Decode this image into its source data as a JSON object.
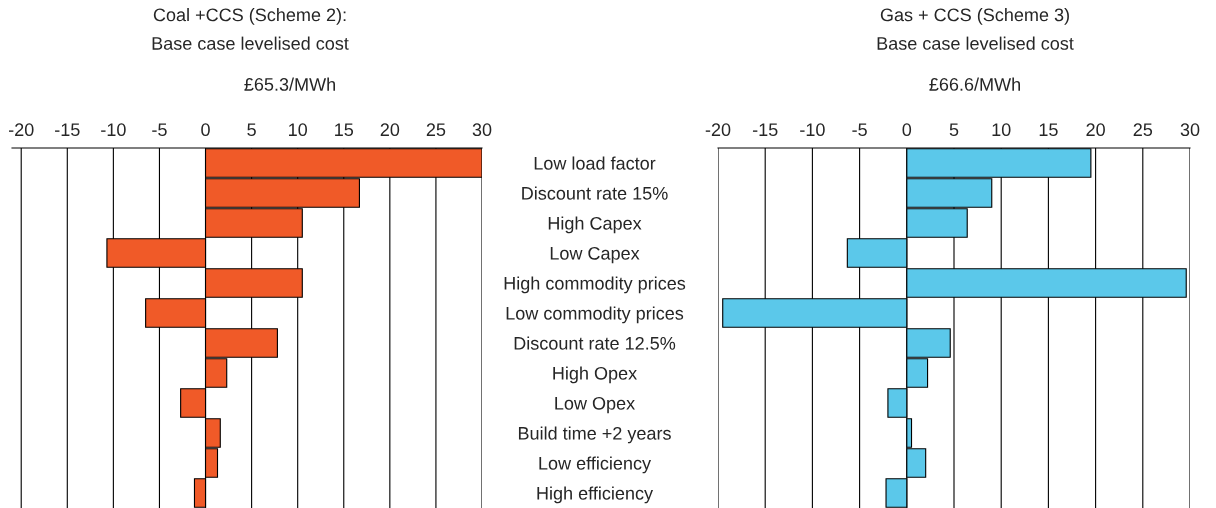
{
  "chart_data": [
    {
      "type": "bar",
      "orientation": "horizontal",
      "title": "Coal +CCS (Scheme 2):\nBase case levelised cost",
      "subtitle": "£65.3/MWh",
      "categories": [
        "Low load factor",
        "Discount rate 15%",
        "High Capex",
        "Low Capex",
        "High commodity prices",
        "Low commodity prices",
        "Discount rate 12.5%",
        "High Opex",
        "Low Opex",
        "Build time +2 years",
        "Low efficiency",
        "High efficiency"
      ],
      "series": [
        {
          "color": "#f05a28",
          "values": [
            30,
            16.7,
            10.5,
            -10.7,
            10.5,
            -6.5,
            7.8,
            2.3,
            -2.7,
            1.6,
            1.3,
            -1.2
          ]
        }
      ],
      "xlim": [
        -21,
        30
      ],
      "xticks": [
        -20,
        -15,
        -10,
        -5,
        0,
        5,
        10,
        15,
        20,
        25,
        30
      ],
      "grid": "x"
    },
    {
      "type": "bar",
      "orientation": "horizontal",
      "title": "Gas + CCS (Scheme 3)\nBase case levelised cost",
      "subtitle": "£66.6/MWh",
      "categories": [
        null,
        null,
        null,
        null,
        null,
        null,
        null,
        null,
        null,
        null,
        null,
        null
      ],
      "series": [
        {
          "color": "#5bc8ea",
          "values": [
            19.5,
            9.0,
            6.4,
            -6.3,
            29.6,
            -19.5,
            4.6,
            2.2,
            -2.0,
            0.5,
            2.0,
            -2.2
          ]
        }
      ],
      "xlim": [
        -20,
        30
      ],
      "xticks": [
        -20,
        -15,
        -10,
        -5,
        0,
        5,
        10,
        15,
        20,
        25,
        30
      ],
      "grid": "x",
      "tick_labels": "x"
    }
  ]
}
